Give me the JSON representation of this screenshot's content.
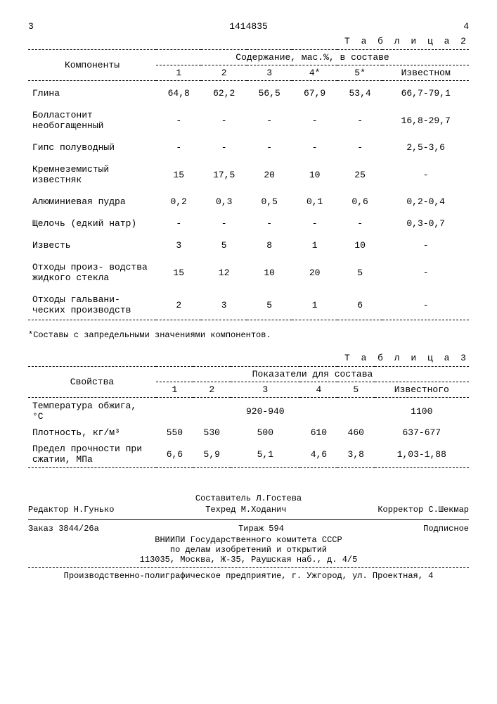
{
  "page_left": "3",
  "patent_number": "1414835",
  "page_right": "4",
  "table2": {
    "caption": "Т а б л и ц а 2",
    "header_col1": "Компоненты",
    "header_group": "Содержание, мас.%, в составе",
    "cols": [
      "1",
      "2",
      "3",
      "4*",
      "5*",
      "Известном"
    ],
    "rows": [
      {
        "label": "Глина",
        "v": [
          "64,8",
          "62,2",
          "56,5",
          "67,9",
          "53,4",
          "66,7-79,1"
        ]
      },
      {
        "label": "Болластонит необогащенный",
        "v": [
          "-",
          "-",
          "-",
          "-",
          "-",
          "16,8-29,7"
        ]
      },
      {
        "label": "Гипс полуводный",
        "v": [
          "-",
          "-",
          "-",
          "-",
          "-",
          "2,5-3,6"
        ]
      },
      {
        "label": "Кремнеземистый известняк",
        "v": [
          "15",
          "17,5",
          "20",
          "10",
          "25",
          "-"
        ]
      },
      {
        "label": "Алюминиевая пудра",
        "v": [
          "0,2",
          "0,3",
          "0,5",
          "0,1",
          "0,6",
          "0,2-0,4"
        ]
      },
      {
        "label": "Щелочь (едкий натр)",
        "v": [
          "-",
          "-",
          "-",
          "-",
          "-",
          "0,3-0,7"
        ]
      },
      {
        "label": "Известь",
        "v": [
          "3",
          "5",
          "8",
          "1",
          "10",
          "-"
        ]
      },
      {
        "label": "Отходы произ- водства жидкого стекла",
        "v": [
          "15",
          "12",
          "10",
          "20",
          "5",
          "-"
        ]
      },
      {
        "label": "Отходы гальвани- ческих производств",
        "v": [
          "2",
          "3",
          "5",
          "1",
          "6",
          "-"
        ]
      }
    ]
  },
  "footnote": "*Составы с запредельными значениями компонентов.",
  "table3": {
    "caption": "Т а б л и ц а 3",
    "header_col1": "Свойства",
    "header_group": "Показатели для состава",
    "cols": [
      "1",
      "2",
      "3",
      "4",
      "5",
      "Известного"
    ],
    "rows": [
      {
        "label": "Температура обжига, °С",
        "v": [
          "",
          "",
          "920-940",
          "",
          "",
          "1100"
        ]
      },
      {
        "label": "Плотность, кг/м³",
        "v": [
          "550",
          "530",
          "500",
          "610",
          "460",
          "637-677"
        ]
      },
      {
        "label": "Предел прочности при сжатии, МПа",
        "v": [
          "6,6",
          "5,9",
          "5,1",
          "4,6",
          "3,8",
          "1,03-1,88"
        ]
      }
    ]
  },
  "credits": {
    "compiler": "Составитель Л.Гостева",
    "editor": "Редактор Н.Гунько",
    "techred": "Техред М.Ходанич",
    "corrector": "Корректор С.Шекмар",
    "order": "Заказ 3844/26а",
    "tirage": "Тираж 594",
    "subscribe": "Подписное",
    "org1": "ВНИИПИ Государственного комитета СССР",
    "org2": "по делам изобретений и открытий",
    "addr": "113035, Москва, Ж-35, Раушская наб., д. 4/5",
    "printer": "Производственно-полиграфическое предприятие, г. Ужгород, ул. Проектная, 4"
  }
}
